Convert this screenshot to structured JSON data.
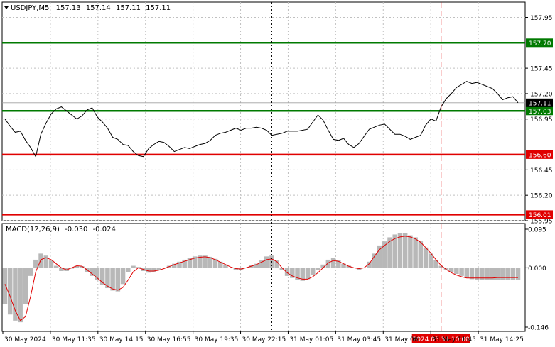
{
  "header": {
    "symbol": "USDJPY,M5",
    "open": "157.13",
    "high": "157.14",
    "low": "157.11",
    "close": "157.11"
  },
  "macd_header": {
    "label": "MACD(12,26,9)",
    "macd": "-0.030",
    "signal": "-0.024"
  },
  "chart_data": [
    {
      "type": "line",
      "title": "USDJPY,M5 157.13 157.14 157.11 157.11",
      "ylim": [
        155.95,
        158.1
      ],
      "y_ticks": [
        "157.95",
        "157.45",
        "157.20",
        "156.95",
        "156.45",
        "156.20",
        "155.95"
      ],
      "x_tick_labels": [
        "30 May 2024",
        "30 May 11:35",
        "30 May 14:15",
        "30 May 16:55",
        "30 May 19:35",
        "30 May 22:15",
        "31 May 01:05",
        "31 May 03:45",
        "31 May 06:",
        "31 May 11:45",
        "31 May 14:25"
      ],
      "horizontal_levels": [
        {
          "value": 157.7,
          "label": "157.70",
          "color": "#007a00"
        },
        {
          "value": 157.03,
          "label": "157.03",
          "color": "#007a00"
        },
        {
          "value": 156.6,
          "label": "156.60",
          "color": "#e00000"
        },
        {
          "value": 156.01,
          "label": "156.01",
          "color": "#e00000"
        }
      ],
      "current_price": {
        "value": 157.11,
        "label": "157.11"
      },
      "vertical_markers": [
        {
          "x_index": 52,
          "style": "dotted",
          "color": "#000000"
        },
        {
          "x_index": 85,
          "style": "dashed",
          "color": "#e00000",
          "label": "2024.05.31 10:00"
        }
      ],
      "series": [
        {
          "values": [
            156.95,
            156.88,
            156.82,
            156.83,
            156.74,
            156.67,
            156.58,
            156.8,
            156.91,
            157.0,
            157.05,
            157.07,
            157.03,
            156.99,
            156.95,
            156.98,
            157.04,
            157.06,
            156.97,
            156.92,
            156.86,
            156.77,
            156.75,
            156.7,
            156.69,
            156.63,
            156.59,
            156.58,
            156.66,
            156.7,
            156.73,
            156.72,
            156.68,
            156.63,
            156.65,
            156.67,
            156.66,
            156.68,
            156.7,
            156.71,
            156.74,
            156.79,
            156.81,
            156.82,
            156.84,
            156.86,
            156.84,
            156.86,
            156.86,
            156.87,
            156.86,
            156.84,
            156.79,
            156.8,
            156.81,
            156.83,
            156.83,
            156.83,
            156.84,
            156.85,
            156.92,
            156.99,
            156.94,
            156.84,
            156.75,
            156.74,
            156.76,
            156.7,
            156.67,
            156.71,
            156.78,
            156.85,
            156.87,
            156.89,
            156.9,
            156.85,
            156.8,
            156.8,
            156.78,
            156.75,
            156.77,
            156.79,
            156.89,
            156.95,
            156.93,
            157.07,
            157.15,
            157.2,
            157.26,
            157.29,
            157.32,
            157.3,
            157.31,
            157.29,
            157.27,
            157.25,
            157.2,
            157.14,
            157.16,
            157.17,
            157.11
          ]
        }
      ]
    },
    {
      "type": "bar",
      "title": "MACD(12,26,9) -0.030 -0.024",
      "ylim": [
        -0.146,
        0.095
      ],
      "y_ticks": [
        "0.095",
        "0.000",
        "-0.146"
      ],
      "series": [
        {
          "type": "bar",
          "values": [
            -0.09,
            -0.115,
            -0.13,
            -0.134,
            -0.09,
            -0.02,
            0.02,
            0.035,
            0.03,
            0.018,
            0.005,
            -0.008,
            -0.008,
            -0.002,
            0.005,
            0.004,
            -0.01,
            -0.02,
            -0.03,
            -0.042,
            -0.05,
            -0.056,
            -0.058,
            -0.04,
            -0.01,
            0.005,
            0.002,
            -0.008,
            -0.012,
            -0.01,
            -0.006,
            0.0,
            0.005,
            0.01,
            0.015,
            0.02,
            0.025,
            0.028,
            0.03,
            0.03,
            0.027,
            0.022,
            0.015,
            0.008,
            0.0,
            -0.005,
            -0.005,
            0.0,
            0.006,
            0.01,
            0.018,
            0.028,
            0.03,
            0.018,
            -0.005,
            -0.02,
            -0.025,
            -0.03,
            -0.032,
            -0.028,
            -0.018,
            -0.005,
            0.008,
            0.02,
            0.025,
            0.018,
            0.01,
            0.005,
            0.0,
            -0.005,
            0.0,
            0.015,
            0.035,
            0.055,
            0.065,
            0.075,
            0.082,
            0.085,
            0.086,
            0.08,
            0.075,
            0.065,
            0.05,
            0.035,
            0.02,
            0.005,
            -0.005,
            -0.01,
            -0.015,
            -0.02,
            -0.025,
            -0.028,
            -0.03,
            -0.03,
            -0.03,
            -0.03,
            -0.03,
            -0.03,
            -0.03,
            -0.03,
            -0.03
          ]
        },
        {
          "type": "line",
          "color": "#e00000",
          "values": [
            -0.04,
            -0.07,
            -0.105,
            -0.13,
            -0.12,
            -0.07,
            -0.01,
            0.02,
            0.025,
            0.02,
            0.01,
            0.0,
            -0.005,
            0.0,
            0.005,
            0.004,
            -0.005,
            -0.015,
            -0.025,
            -0.036,
            -0.045,
            -0.052,
            -0.055,
            -0.048,
            -0.03,
            -0.01,
            0.0,
            -0.004,
            -0.008,
            -0.008,
            -0.006,
            -0.002,
            0.003,
            0.008,
            0.012,
            0.016,
            0.02,
            0.024,
            0.026,
            0.027,
            0.025,
            0.02,
            0.014,
            0.008,
            0.002,
            -0.002,
            -0.003,
            0.0,
            0.004,
            0.008,
            0.014,
            0.02,
            0.022,
            0.015,
            0.0,
            -0.012,
            -0.02,
            -0.025,
            -0.028,
            -0.028,
            -0.022,
            -0.012,
            0.0,
            0.012,
            0.018,
            0.016,
            0.01,
            0.004,
            0.0,
            -0.002,
            0.0,
            0.01,
            0.028,
            0.045,
            0.055,
            0.065,
            0.072,
            0.076,
            0.078,
            0.076,
            0.071,
            0.063,
            0.05,
            0.036,
            0.02,
            0.006,
            -0.004,
            -0.012,
            -0.018,
            -0.022,
            -0.025,
            -0.025,
            -0.025,
            -0.025,
            -0.025,
            -0.025,
            -0.024,
            -0.024,
            -0.024,
            -0.024,
            -0.024
          ]
        }
      ]
    }
  ],
  "colors": {
    "background": "#ffffff",
    "axis": "#000000",
    "grid": "#c0c0c0",
    "price_line": "#000000",
    "support_resistance_green": "#007a00",
    "support_resistance_red": "#e00000",
    "macd_bars": "#b8b8b8",
    "signal_line": "#e00000"
  }
}
